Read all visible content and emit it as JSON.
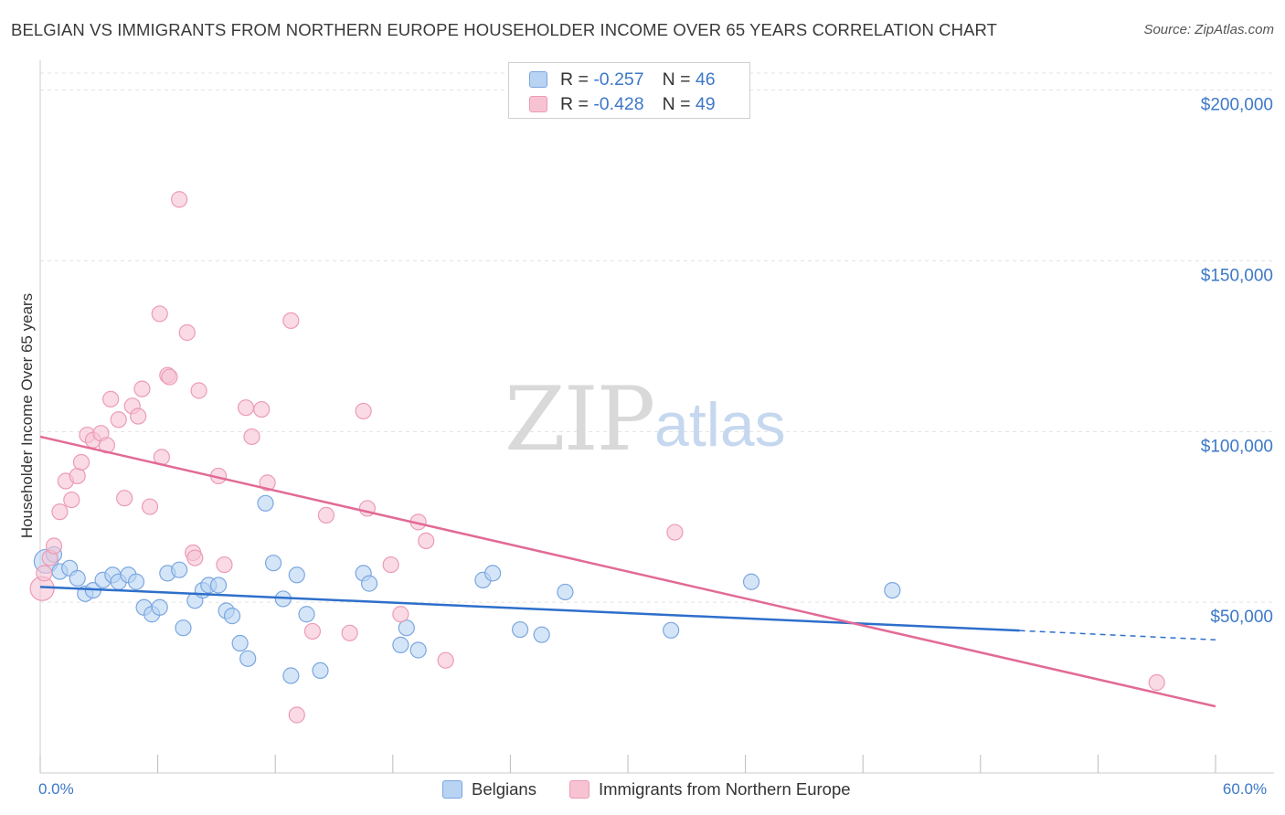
{
  "title": "BELGIAN VS IMMIGRANTS FROM NORTHERN EUROPE HOUSEHOLDER INCOME OVER 65 YEARS CORRELATION CHART",
  "source": "Source: ZipAtlas.com",
  "watermark": {
    "zip": "ZIP",
    "atlas": "atlas"
  },
  "legend": {
    "r_label": "R =",
    "n_label": "N =",
    "rows": [
      {
        "r": "-0.257",
        "n": "46"
      },
      {
        "r": "-0.428",
        "n": "49"
      }
    ]
  },
  "bottom_legend": [
    {
      "label": "Belgians"
    },
    {
      "label": "Immigrants from Northern Europe"
    }
  ],
  "colors": {
    "belgians_fill": "#b9d3f3",
    "belgians_stroke": "#7aa7e0",
    "belgians_line": "#2e6fcb",
    "immigrants_fill": "#f7c3d3",
    "immigrants_stroke": "#ec9bb5",
    "immigrants_line": "#e26a96",
    "grid": "#e3e3e3",
    "axis_text": "#3d78c8"
  },
  "chart_data": {
    "type": "scatter",
    "title": "BELGIAN VS IMMIGRANTS FROM NORTHERN EUROPE HOUSEHOLDER INCOME OVER 65 YEARS CORRELATION CHART",
    "xlabel": "",
    "ylabel": "Householder Income Over 65 years",
    "xlim": [
      0,
      60
    ],
    "ylim": [
      0,
      205000
    ],
    "x_tick_labels": [
      {
        "value": 0,
        "label": "0.0%"
      },
      {
        "value": 60,
        "label": "60.0%"
      }
    ],
    "y_ticks": [
      {
        "value": 50000,
        "label": "$50,000"
      },
      {
        "value": 100000,
        "label": "$100,000"
      },
      {
        "value": 150000,
        "label": "$150,000"
      },
      {
        "value": 200000,
        "label": "$200,000"
      }
    ],
    "series": [
      {
        "name": "Belgians",
        "points": [
          [
            0.3,
            62000
          ],
          [
            0.7,
            64000
          ],
          [
            1.0,
            59000
          ],
          [
            1.5,
            60000
          ],
          [
            1.9,
            57000
          ],
          [
            2.3,
            52500
          ],
          [
            2.7,
            53500
          ],
          [
            3.2,
            56500
          ],
          [
            3.7,
            58000
          ],
          [
            4.0,
            56000
          ],
          [
            4.5,
            58000
          ],
          [
            4.9,
            56000
          ],
          [
            5.3,
            48500
          ],
          [
            5.7,
            46500
          ],
          [
            6.1,
            48500
          ],
          [
            6.5,
            58500
          ],
          [
            7.1,
            59500
          ],
          [
            7.3,
            42500
          ],
          [
            7.9,
            50500
          ],
          [
            8.3,
            53500
          ],
          [
            8.6,
            55000
          ],
          [
            9.1,
            55000
          ],
          [
            9.5,
            47500
          ],
          [
            9.8,
            46000
          ],
          [
            10.2,
            38000
          ],
          [
            10.6,
            33500
          ],
          [
            11.5,
            79000
          ],
          [
            11.9,
            61500
          ],
          [
            12.4,
            51000
          ],
          [
            12.8,
            28500
          ],
          [
            13.1,
            58000
          ],
          [
            13.6,
            46500
          ],
          [
            14.3,
            30000
          ],
          [
            16.5,
            58500
          ],
          [
            16.8,
            55500
          ],
          [
            18.4,
            37500
          ],
          [
            18.7,
            42500
          ],
          [
            19.3,
            36000
          ],
          [
            22.6,
            56500
          ],
          [
            23.1,
            58500
          ],
          [
            24.5,
            42000
          ],
          [
            25.6,
            40500
          ],
          [
            26.8,
            53000
          ],
          [
            32.2,
            41800
          ],
          [
            36.3,
            56000
          ],
          [
            43.5,
            53500
          ]
        ]
      },
      {
        "name": "Immigrants from Northern Europe",
        "points": [
          [
            0.1,
            54000
          ],
          [
            0.5,
            63000
          ],
          [
            0.7,
            66500
          ],
          [
            1.0,
            76500
          ],
          [
            1.3,
            85500
          ],
          [
            1.6,
            80000
          ],
          [
            1.9,
            87000
          ],
          [
            2.1,
            91000
          ],
          [
            2.4,
            99000
          ],
          [
            2.7,
            97500
          ],
          [
            3.1,
            99500
          ],
          [
            3.4,
            96000
          ],
          [
            3.6,
            109500
          ],
          [
            4.0,
            103500
          ],
          [
            4.3,
            80500
          ],
          [
            4.7,
            107500
          ],
          [
            5.0,
            104500
          ],
          [
            5.2,
            112500
          ],
          [
            5.6,
            78000
          ],
          [
            6.1,
            134500
          ],
          [
            6.2,
            92500
          ],
          [
            6.5,
            116500
          ],
          [
            6.6,
            116000
          ],
          [
            7.1,
            168000
          ],
          [
            7.5,
            129000
          ],
          [
            7.8,
            64500
          ],
          [
            7.9,
            63000
          ],
          [
            8.1,
            112000
          ],
          [
            9.1,
            87000
          ],
          [
            9.4,
            61000
          ],
          [
            10.5,
            107000
          ],
          [
            10.8,
            98500
          ],
          [
            11.3,
            106500
          ],
          [
            11.6,
            85000
          ],
          [
            12.8,
            132500
          ],
          [
            13.1,
            17000
          ],
          [
            13.9,
            41500
          ],
          [
            14.6,
            75500
          ],
          [
            15.8,
            41000
          ],
          [
            16.5,
            106000
          ],
          [
            16.7,
            77500
          ],
          [
            17.9,
            61000
          ],
          [
            18.4,
            46500
          ],
          [
            19.3,
            73500
          ],
          [
            19.7,
            68000
          ],
          [
            20.7,
            33000
          ],
          [
            32.4,
            70500
          ],
          [
            57.0,
            26500
          ],
          [
            0.2,
            58500
          ]
        ]
      }
    ],
    "trend_lines": [
      {
        "series": "Belgians",
        "x": [
          0,
          50
        ],
        "y": [
          54500,
          41700
        ],
        "dashed_extension": {
          "x": [
            50,
            60
          ],
          "y": [
            41700,
            39000
          ]
        }
      },
      {
        "series": "Immigrants from Northern Europe",
        "x": [
          0,
          60
        ],
        "y": [
          98500,
          19500
        ]
      }
    ],
    "grid": true,
    "legend_position": "top-center"
  }
}
